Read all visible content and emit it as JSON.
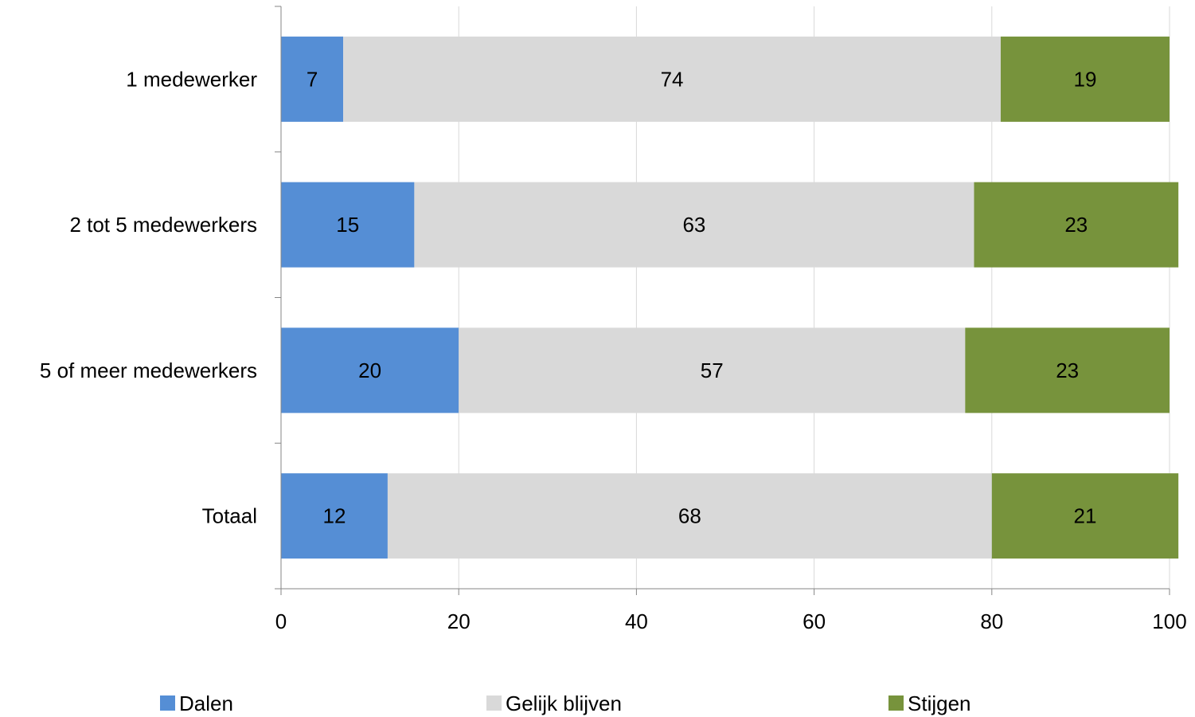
{
  "chart_data": {
    "type": "bar",
    "orientation": "horizontal",
    "stacked": true,
    "categories": [
      "1 medewerker",
      "2 tot 5 medewerkers",
      "5 of meer medewerkers",
      "Totaal"
    ],
    "series": [
      {
        "name": "Dalen",
        "values": [
          7,
          15,
          20,
          12
        ],
        "color": "#558ed5"
      },
      {
        "name": "Gelijk blijven",
        "values": [
          74,
          63,
          57,
          68
        ],
        "color": "#d9d9d9"
      },
      {
        "name": "Stijgen",
        "values": [
          19,
          23,
          23,
          21
        ],
        "color": "#77933c"
      }
    ],
    "xlim": [
      0,
      100
    ],
    "xticks": [
      0,
      20,
      40,
      60,
      80,
      100
    ],
    "grid": true,
    "legend_position": "bottom",
    "title": "",
    "xlabel": "",
    "ylabel": ""
  }
}
